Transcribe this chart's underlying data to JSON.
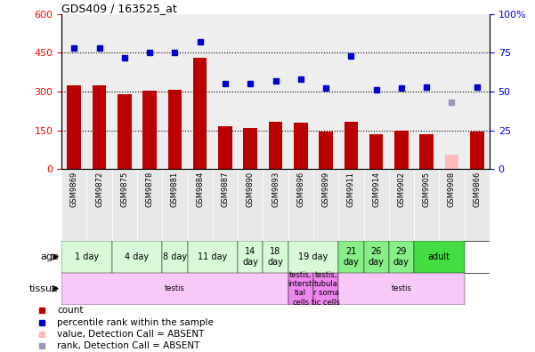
{
  "title": "GDS409 / 163525_at",
  "samples": [
    "GSM9869",
    "GSM9872",
    "GSM9875",
    "GSM9878",
    "GSM9881",
    "GSM9884",
    "GSM9887",
    "GSM9890",
    "GSM9893",
    "GSM9896",
    "GSM9899",
    "GSM9911",
    "GSM9914",
    "GSM9902",
    "GSM9905",
    "GSM9908",
    "GSM9866"
  ],
  "bar_values": [
    325,
    325,
    290,
    305,
    308,
    430,
    165,
    158,
    183,
    178,
    145,
    183,
    133,
    148,
    133,
    55,
    145
  ],
  "bar_absent": [
    false,
    false,
    false,
    false,
    false,
    false,
    false,
    false,
    false,
    false,
    false,
    false,
    false,
    false,
    false,
    true,
    false
  ],
  "scatter_values": [
    78,
    78,
    72,
    75,
    75,
    82,
    55,
    55,
    57,
    58,
    52,
    73,
    51,
    52,
    53,
    43,
    53
  ],
  "scatter_absent": [
    false,
    false,
    false,
    false,
    false,
    false,
    false,
    false,
    false,
    false,
    false,
    false,
    false,
    false,
    false,
    true,
    false
  ],
  "ylim_left": [
    0,
    600
  ],
  "ylim_right": [
    0,
    100
  ],
  "yticks_left": [
    0,
    150,
    300,
    450,
    600
  ],
  "yticks_right": [
    0,
    25,
    50,
    75,
    100
  ],
  "age_groups": [
    {
      "label": "1 day",
      "start": 0,
      "end": 2,
      "color": "#d8f8d8"
    },
    {
      "label": "4 day",
      "start": 2,
      "end": 4,
      "color": "#d8f8d8"
    },
    {
      "label": "8 day",
      "start": 4,
      "end": 5,
      "color": "#d8f8d8"
    },
    {
      "label": "11 day",
      "start": 5,
      "end": 7,
      "color": "#d8f8d8"
    },
    {
      "label": "14\nday",
      "start": 7,
      "end": 8,
      "color": "#d8f8d8"
    },
    {
      "label": "18\nday",
      "start": 8,
      "end": 9,
      "color": "#d8f8d8"
    },
    {
      "label": "19 day",
      "start": 9,
      "end": 11,
      "color": "#d8f8d8"
    },
    {
      "label": "21\nday",
      "start": 11,
      "end": 12,
      "color": "#88ee88"
    },
    {
      "label": "26\nday",
      "start": 12,
      "end": 13,
      "color": "#88ee88"
    },
    {
      "label": "29\nday",
      "start": 13,
      "end": 14,
      "color": "#88ee88"
    },
    {
      "label": "adult",
      "start": 14,
      "end": 16,
      "color": "#44dd44"
    }
  ],
  "tissue_groups": [
    {
      "label": "testis",
      "start": 0,
      "end": 9,
      "color": "#f8c8f8"
    },
    {
      "label": "testis,\nintersti\ntial\ncells",
      "start": 9,
      "end": 10,
      "color": "#ee88ee"
    },
    {
      "label": "testis,\ntubula\nr soma\ntic cells",
      "start": 10,
      "end": 11,
      "color": "#ee88ee"
    },
    {
      "label": "testis",
      "start": 11,
      "end": 16,
      "color": "#f8c8f8"
    }
  ],
  "bar_color": "#bb0000",
  "bar_absent_color": "#ffbbbb",
  "scatter_color": "#0000cc",
  "scatter_absent_color": "#9999bb",
  "legend_items": [
    {
      "color": "#bb0000",
      "label": "count"
    },
    {
      "color": "#0000cc",
      "label": "percentile rank within the sample"
    },
    {
      "color": "#ffbbbb",
      "label": "value, Detection Call = ABSENT"
    },
    {
      "color": "#9999bb",
      "label": "rank, Detection Call = ABSENT"
    }
  ]
}
